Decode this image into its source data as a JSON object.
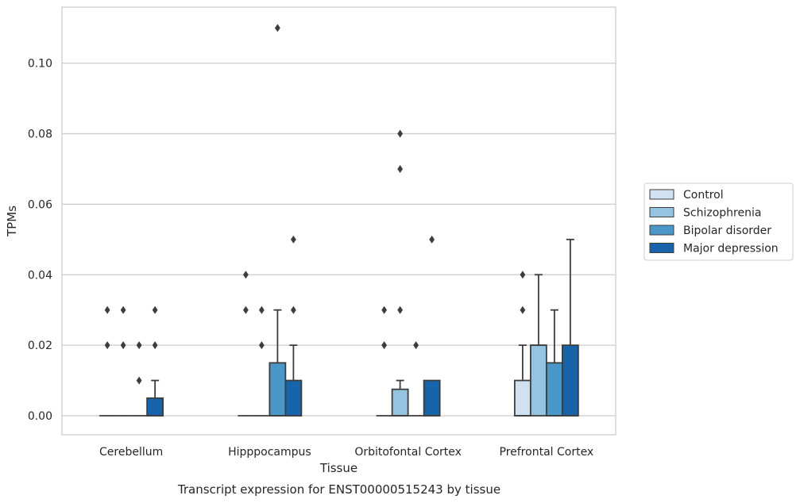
{
  "caption": "Transcript expression for ENST00000515243 by tissue",
  "chart_data": {
    "type": "box",
    "xlabel": "Tissue",
    "ylabel": "TPMs",
    "ylim": [
      -0.0054,
      0.1159
    ],
    "yticks": [
      0.0,
      0.02,
      0.04,
      0.06,
      0.08,
      0.1
    ],
    "ytick_labels": [
      "0.00",
      "0.02",
      "0.04",
      "0.06",
      "0.08",
      "0.10"
    ],
    "grid": true,
    "legend_position": "right",
    "categories": [
      "Cerebellum",
      "Hipppocampus",
      "Orbitofontal Cortex",
      "Prefrontal Cortex"
    ],
    "series": [
      {
        "name": "Control",
        "color": "#d0e1f2",
        "boxes": [
          {
            "q1": 0,
            "median": 0,
            "q3": 0,
            "whisker_low": 0,
            "whisker_high": 0,
            "outliers": [
              0.02,
              0.03
            ]
          },
          {
            "q1": 0,
            "median": 0,
            "q3": 0,
            "whisker_low": 0,
            "whisker_high": 0,
            "outliers": [
              0.03,
              0.04
            ]
          },
          {
            "q1": 0,
            "median": 0,
            "q3": 0,
            "whisker_low": 0,
            "whisker_high": 0,
            "outliers": [
              0.02,
              0.03
            ]
          },
          {
            "q1": 0,
            "median": 0,
            "q3": 0.01,
            "whisker_low": 0,
            "whisker_high": 0.02,
            "outliers": [
              0.03,
              0.04
            ]
          }
        ]
      },
      {
        "name": "Schizophrenia",
        "color": "#94c4df",
        "boxes": [
          {
            "q1": 0,
            "median": 0,
            "q3": 0,
            "whisker_low": 0,
            "whisker_high": 0,
            "outliers": [
              0.02,
              0.03
            ]
          },
          {
            "q1": 0,
            "median": 0,
            "q3": 0,
            "whisker_low": 0,
            "whisker_high": 0,
            "outliers": [
              0.02,
              0.03
            ]
          },
          {
            "q1": 0,
            "median": 0,
            "q3": 0.0075,
            "whisker_low": 0,
            "whisker_high": 0.01,
            "outliers": [
              0.03,
              0.07,
              0.08
            ]
          },
          {
            "q1": 0,
            "median": 0.02,
            "q3": 0.02,
            "whisker_low": 0,
            "whisker_high": 0.04,
            "outliers": []
          }
        ]
      },
      {
        "name": "Bipolar disorder",
        "color": "#4a98c9",
        "boxes": [
          {
            "q1": 0,
            "median": 0,
            "q3": 0,
            "whisker_low": 0,
            "whisker_high": 0,
            "outliers": [
              0.01,
              0.02
            ]
          },
          {
            "q1": 0,
            "median": 0,
            "q3": 0.015,
            "whisker_low": 0,
            "whisker_high": 0.03,
            "outliers": [
              0.11
            ]
          },
          {
            "q1": 0,
            "median": 0,
            "q3": 0,
            "whisker_low": 0,
            "whisker_high": 0,
            "outliers": [
              0.02
            ]
          },
          {
            "q1": 0,
            "median": 0,
            "q3": 0.015,
            "whisker_low": 0,
            "whisker_high": 0.03,
            "outliers": []
          }
        ]
      },
      {
        "name": "Major depression",
        "color": "#1764ab",
        "boxes": [
          {
            "q1": 0,
            "median": 0,
            "q3": 0.005,
            "whisker_low": 0,
            "whisker_high": 0.01,
            "outliers": [
              0.02,
              0.03
            ]
          },
          {
            "q1": 0,
            "median": 0,
            "q3": 0.01,
            "whisker_low": 0,
            "whisker_high": 0.02,
            "outliers": [
              0.03,
              0.05
            ]
          },
          {
            "q1": 0,
            "median": 0,
            "q3": 0.01,
            "whisker_low": 0,
            "whisker_high": 0.01,
            "outliers": [
              0.05
            ]
          },
          {
            "q1": 0,
            "median": 0,
            "q3": 0.02,
            "whisker_low": 0,
            "whisker_high": 0.05,
            "outliers": []
          }
        ]
      }
    ]
  }
}
